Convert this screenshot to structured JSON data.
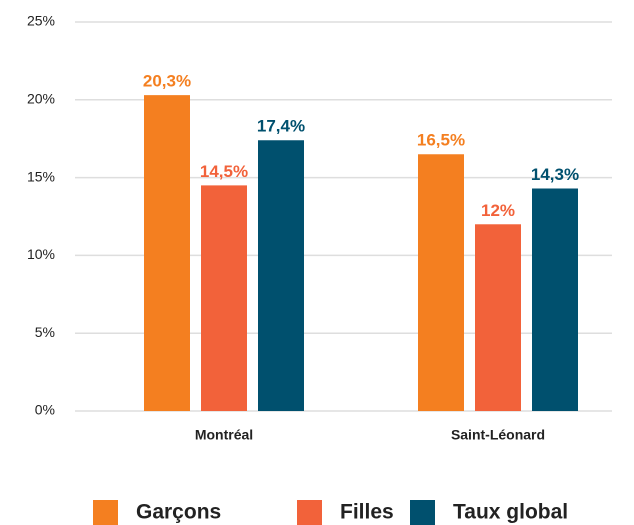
{
  "chart_data": {
    "type": "bar",
    "categories": [
      "Montréal",
      "Saint-Léonard"
    ],
    "series": [
      {
        "name": "Garçons",
        "color": "#f47f20",
        "values": [
          20.3,
          16.5
        ],
        "value_labels": [
          "20,3%",
          "16,5%"
        ]
      },
      {
        "name": "Filles",
        "color": "#f2623a",
        "values": [
          14.5,
          12
        ],
        "value_labels": [
          "14,5%",
          "12%"
        ]
      },
      {
        "name": "Taux global",
        "color": "#00506e",
        "values": [
          17.4,
          14.3
        ],
        "value_labels": [
          "17,4%",
          "14,3%"
        ]
      }
    ],
    "ylim": [
      0,
      25
    ],
    "yticks": [
      {
        "value": 0,
        "label": "0%"
      },
      {
        "value": 5,
        "label": "5%"
      },
      {
        "value": 10,
        "label": "10%"
      },
      {
        "value": 15,
        "label": "15%"
      },
      {
        "value": 20,
        "label": "20%"
      },
      {
        "value": 25,
        "label": "25%"
      }
    ],
    "grid": true,
    "legend": "bottom"
  }
}
